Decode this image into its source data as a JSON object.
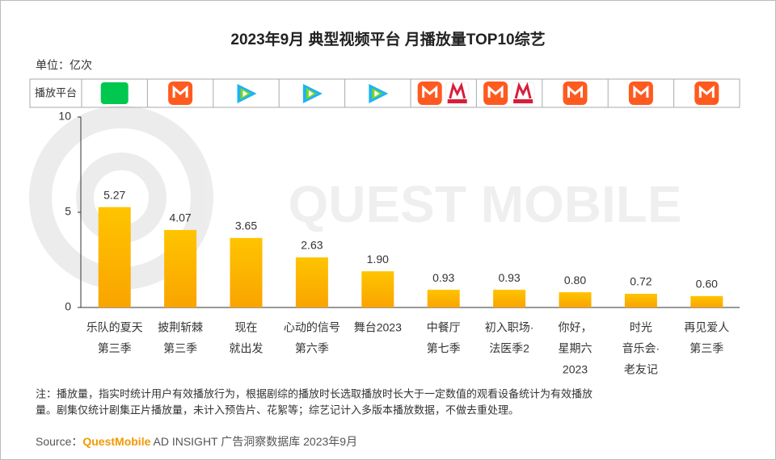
{
  "chart_data": {
    "type": "bar",
    "title": "2023年9月 典型视频平台 月播放量TOP10综艺",
    "unit": "单位：亿次",
    "platform_header": "播放平台",
    "watermark": "QUEST MOBILE",
    "categories": [
      [
        "乐队的夏天",
        "第三季"
      ],
      [
        "披荆斩棘",
        "第三季"
      ],
      [
        "现在",
        "就出发"
      ],
      [
        "心动的信号",
        "第六季"
      ],
      [
        "舞台2023"
      ],
      [
        "中餐厅",
        "第七季"
      ],
      [
        "初入职场·",
        "法医季2"
      ],
      [
        "你好，",
        "星期六",
        "2023"
      ],
      [
        "时光",
        "音乐会·",
        "老友记"
      ],
      [
        "再见爱人",
        "第三季"
      ]
    ],
    "values": [
      5.27,
      4.07,
      3.65,
      2.63,
      1.9,
      0.93,
      0.93,
      0.8,
      0.72,
      0.6
    ],
    "value_labels": [
      "5.27",
      "4.07",
      "3.65",
      "2.63",
      "1.90",
      "0.93",
      "0.93",
      "0.80",
      "0.72",
      "0.60"
    ],
    "color": "#ffc000",
    "ylim": [
      0,
      10
    ],
    "yticks": [
      0,
      5,
      10
    ],
    "note": [
      "注：播放量，指实时统计用户有效播放行为，根据剧综的播放时长选取播放时长大于一定数值的观看设备统计为有效播放",
      "量。剧集仅统计剧集正片播放量，未计入预告片、花絮等；综艺记计入多版本播放数据，不做去重处理。"
    ],
    "source": {
      "label": "Source：",
      "brand": "QuestMobile",
      "text": " AD INSIGHT 广告洞察数据库 2023年9月"
    }
  }
}
